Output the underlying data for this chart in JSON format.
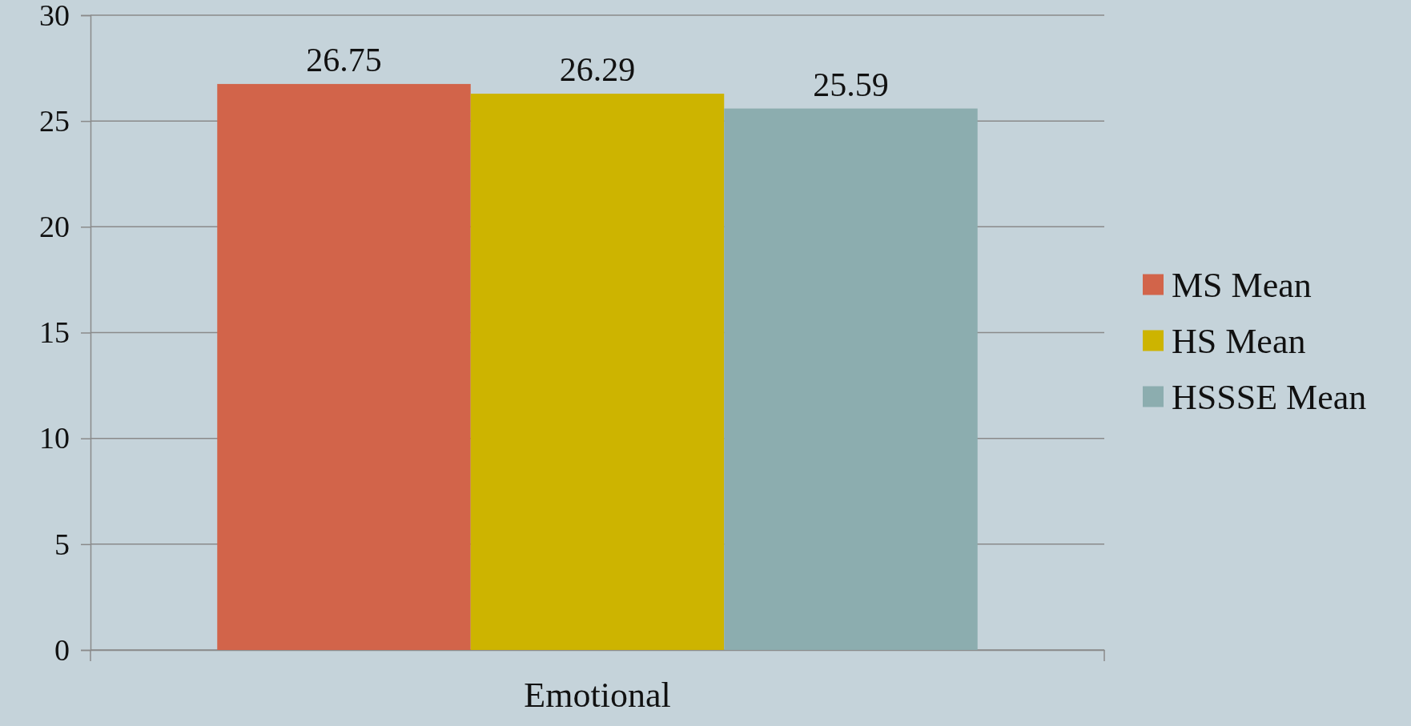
{
  "chart_data": {
    "type": "bar",
    "categories": [
      "Emotional"
    ],
    "series": [
      {
        "name": "MS Mean",
        "color": "#d2644a",
        "values": [
          26.75
        ]
      },
      {
        "name": "HS Mean",
        "color": "#cdb400",
        "values": [
          26.29
        ]
      },
      {
        "name": "HSSSE Mean",
        "color": "#8cadaf",
        "values": [
          25.59
        ]
      }
    ],
    "ylim": [
      0,
      30
    ],
    "yticks": [
      0,
      5,
      10,
      15,
      20,
      25,
      30
    ],
    "grid": "y",
    "legend": "right",
    "data_labels": true
  }
}
